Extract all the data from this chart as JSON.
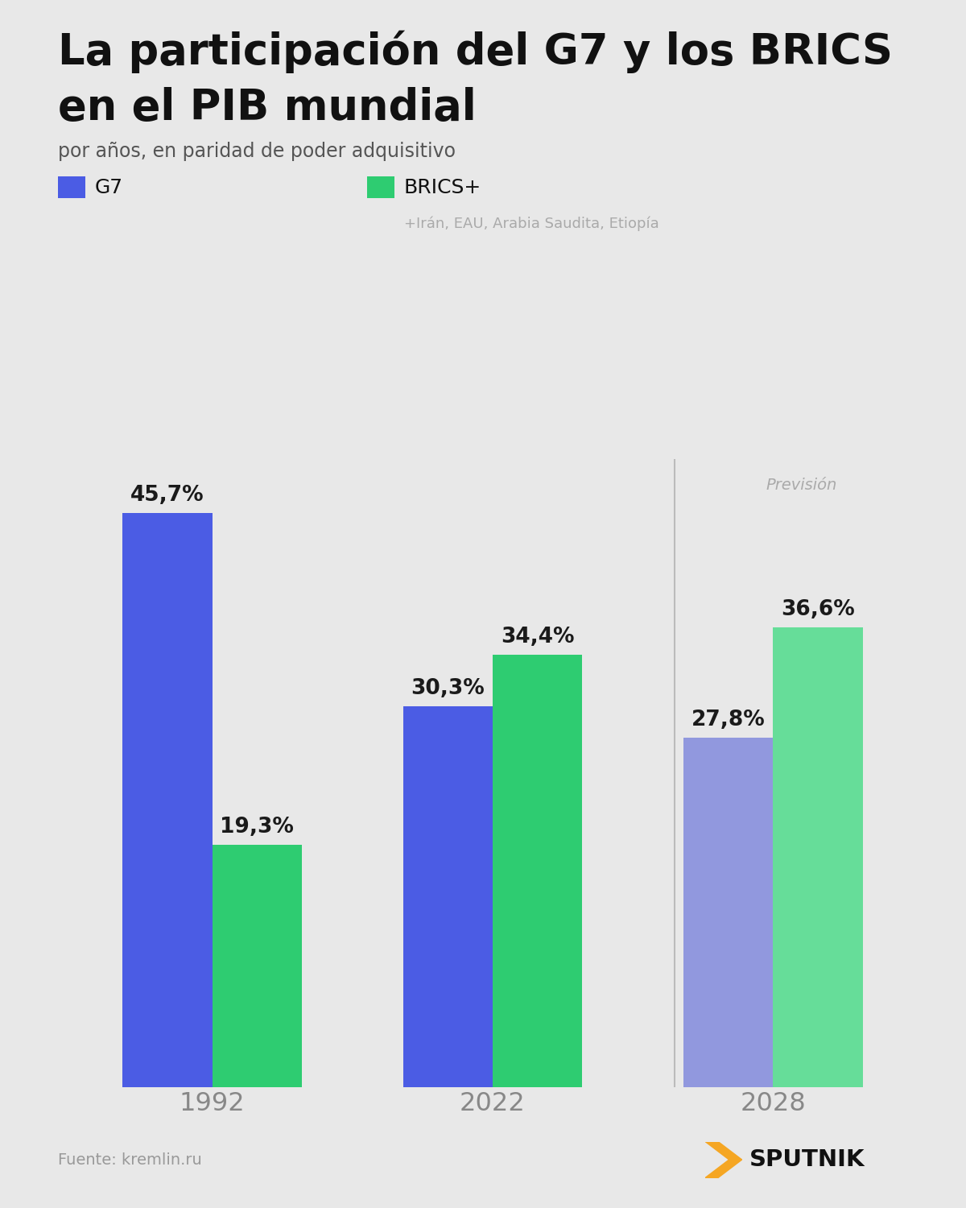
{
  "title_line1": "La participación del G7 y los BRICS",
  "title_line2": "en el PIB mundial",
  "subtitle": "por años, en paridad de poder adquisitivo",
  "legend_g7": "G7",
  "legend_brics": "BRICS+",
  "legend_brics_sub": "+Irán, EAU, Arabia Saudita, Etiopía",
  "prevision_label": "Previsión",
  "source": "Fuente: kremlin.ru",
  "years": [
    "1992",
    "2022",
    "2028"
  ],
  "g7_values": [
    45.7,
    30.3,
    27.8
  ],
  "brics_values": [
    19.3,
    34.4,
    36.6
  ],
  "g7_labels": [
    "45,7%",
    "30,3%",
    "27,8%"
  ],
  "brics_labels": [
    "19,3%",
    "34,4%",
    "36,6%"
  ],
  "g7_colors": [
    "#4B5CE4",
    "#4B5CE4",
    "#9198DE"
  ],
  "brics_colors": [
    "#2ECC71",
    "#2ECC71",
    "#66DD99"
  ],
  "background_color": "#E8E8E8",
  "title_color": "#111111",
  "subtitle_color": "#555555",
  "label_color": "#1a1a1a",
  "prevision_color": "#aaaaaa",
  "source_color": "#999999",
  "legend_sub_color": "#aaaaaa",
  "bar_width": 0.32,
  "ylim": [
    0,
    50
  ],
  "sputnik_text": "SPUTNIK",
  "sputnik_color": "#111111",
  "arrow_color": "#F5A623",
  "year_color": "#888888",
  "divider_color": "#BBBBBB"
}
